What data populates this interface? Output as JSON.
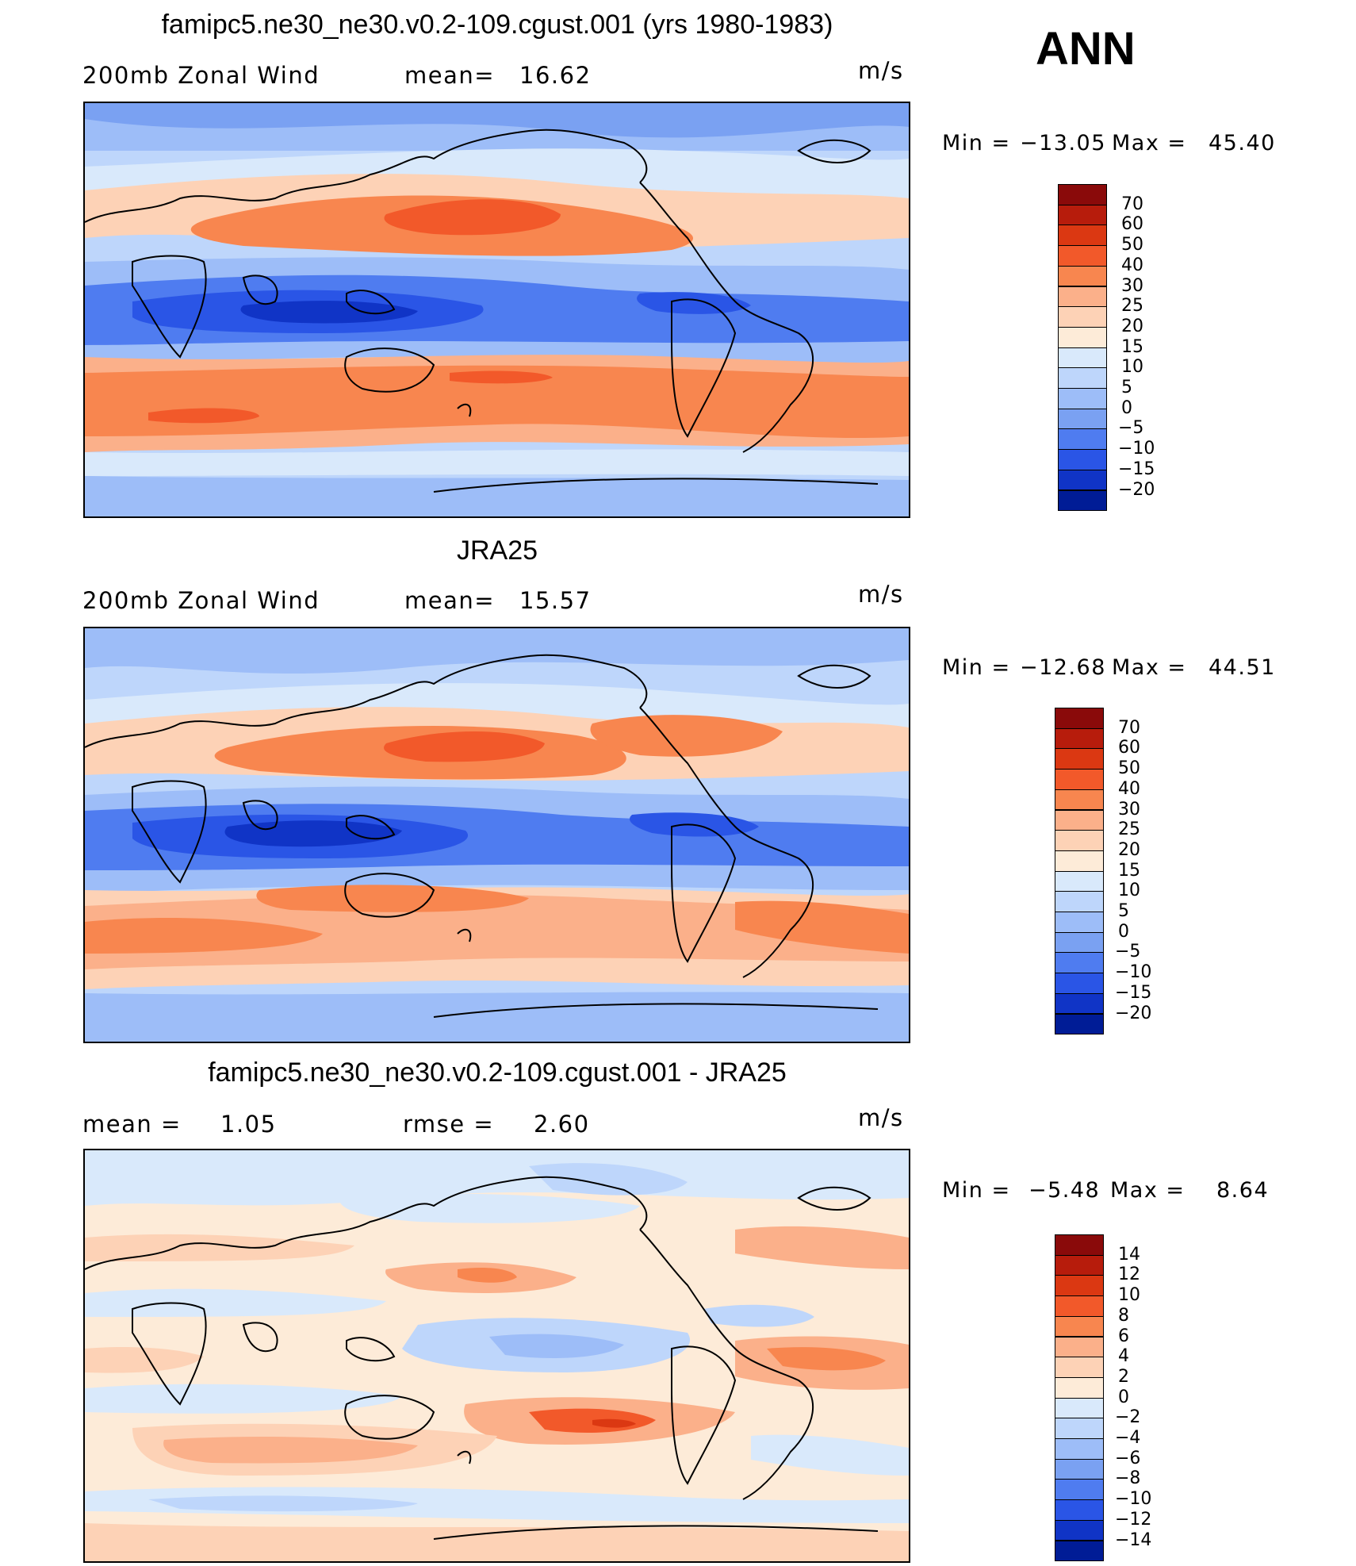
{
  "season": "ANN",
  "panels": [
    {
      "title": "famipc5.ne30_ne30.v0.2-109.cgust.001 (yrs 1980-1983)",
      "left_label": "200mb Zonal Wind",
      "mid_label": "mean=",
      "mid_value": "16.62",
      "units": "m/s",
      "min_label": "Min =",
      "min_value": "−13.05",
      "max_label": "Max =",
      "max_value": "45.40"
    },
    {
      "title": "JRA25",
      "left_label": "200mb Zonal Wind",
      "mid_label": "mean=",
      "mid_value": "15.57",
      "units": "m/s",
      "min_label": "Min =",
      "min_value": "−12.68",
      "max_label": "Max =",
      "max_value": "44.51"
    },
    {
      "title": "famipc5.ne30_ne30.v0.2-109.cgust.001 - JRA25",
      "left_label": "mean =",
      "left_value": "1.05",
      "mid_label": "rmse =",
      "mid_value": "2.60",
      "units": "m/s",
      "min_label": "Min =",
      "min_value": "−5.48",
      "max_label": "Max =",
      "max_value": "8.64"
    }
  ],
  "colorbars": {
    "field": {
      "labels": [
        "70",
        "60",
        "50",
        "40",
        "30",
        "25",
        "20",
        "15",
        "10",
        "5",
        "0",
        "−5",
        "−10",
        "−15",
        "−20"
      ],
      "colors": [
        "#8a0a0a",
        "#b71c0c",
        "#db3812",
        "#f2592a",
        "#f8864f",
        "#fbb08a",
        "#fdd2b6",
        "#fdebd8",
        "#d9e9fb",
        "#bed6fb",
        "#9dbdf8",
        "#7aa1f2",
        "#4f7cf0",
        "#2a55e6",
        "#1034c6",
        "#001c96"
      ]
    },
    "diff": {
      "labels": [
        "14",
        "12",
        "10",
        "8",
        "6",
        "4",
        "2",
        "0",
        "−2",
        "−4",
        "−6",
        "−8",
        "−10",
        "−12",
        "−14"
      ],
      "colors": [
        "#8a0a0a",
        "#b71c0c",
        "#db3812",
        "#f2592a",
        "#f8864f",
        "#fbb08a",
        "#fdd2b6",
        "#fdebd8",
        "#d9e9fb",
        "#bed6fb",
        "#9dbdf8",
        "#7aa1f2",
        "#4f7cf0",
        "#2a55e6",
        "#1034c6",
        "#001c96"
      ]
    }
  }
}
